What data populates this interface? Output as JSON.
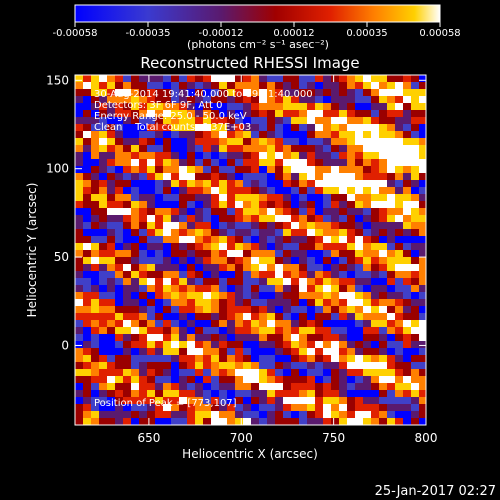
{
  "chart_data": {
    "type": "heatmap",
    "title": "Reconstructed RHESSI Image",
    "xlabel": "Heliocentric X (arcsec)",
    "ylabel": "Heliocentric Y (arcsec)",
    "xlim": [
      610,
      800
    ],
    "ylim": [
      -45,
      153
    ],
    "x_ticks": [
      650,
      700,
      750,
      800
    ],
    "y_ticks": [
      0,
      50,
      100,
      150
    ],
    "colorbar": {
      "min": -0.00058,
      "max": 0.00058,
      "tick_labels": [
        "-0.00058",
        "-0.00035",
        "-0.00012",
        "0.00012",
        "0.00035",
        "0.00058"
      ],
      "unit_label": "(photons cm⁻² s⁻¹ asec⁻²)",
      "colors": [
        "#0000ff",
        "#4040c8",
        "#5a1a6e",
        "#9a0000",
        "#e02000",
        "#ff8000",
        "#ffd000",
        "#ffffff"
      ]
    },
    "annotations": {
      "time": "30-Aug-2014 19:41:40.000 to 19:51:40.000",
      "detectors": "Detectors: 3F 6F 9F, Att 0",
      "energy": "Energy Range: 25.0 - 50.0 keV",
      "clean": "Clean    Total counts: 6.37E+03",
      "peak": "Position of Peak = [773,107]"
    },
    "peak_position": [
      773,
      107
    ],
    "pattern": "diagonal striped noise, brightest near peak",
    "footer": "25-Jan-2017 02:27"
  }
}
